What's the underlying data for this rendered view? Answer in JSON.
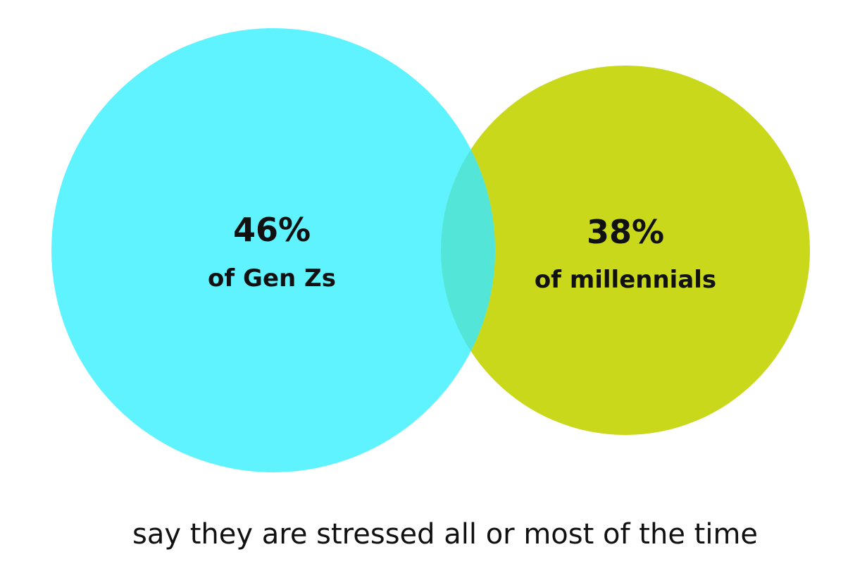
{
  "diagram": {
    "type": "venn",
    "sets": [
      {
        "percent": "46%",
        "label": "of Gen Zs",
        "color": "#5ff3ff"
      },
      {
        "percent": "38%",
        "label": "of millennials",
        "color": "#c9d81a"
      }
    ],
    "overlap_color": "#53e6d8",
    "caption": "say they are stressed all or most of the time"
  }
}
